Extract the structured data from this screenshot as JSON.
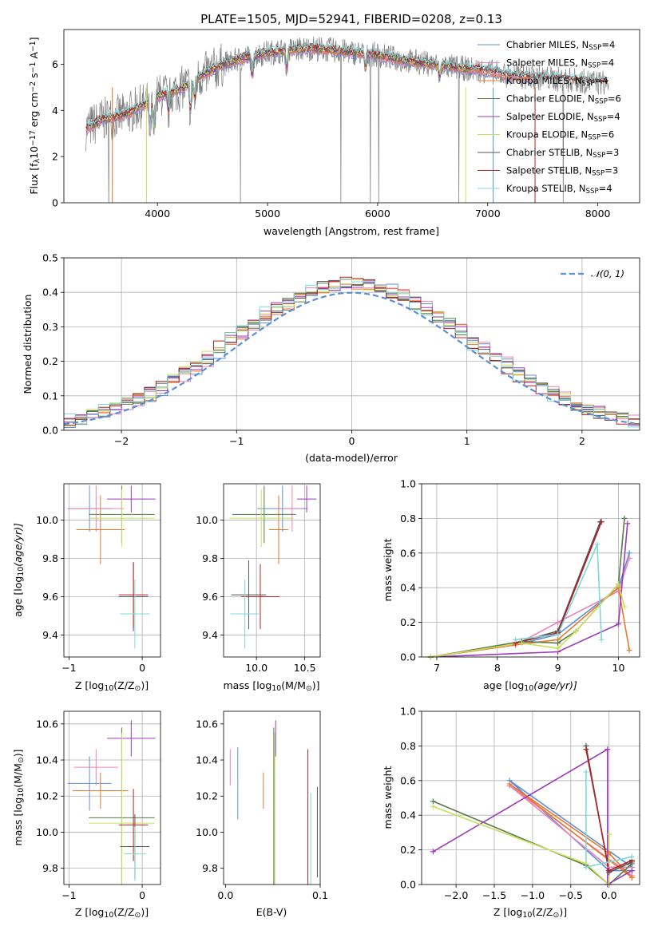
{
  "palette": {
    "c_miles": "#5b8fd6",
    "s_miles": "#ee82b8",
    "k_miles": "#e8782e",
    "c_elodie": "#5a7a4a",
    "s_elodie": "#9b3cb8",
    "k_elodie": "#c8e05a",
    "c_stelib": "#555555",
    "s_stelib": "#b22222",
    "k_stelib": "#7fd8d8",
    "gauss": "#5b8fd6",
    "data": "#808080"
  },
  "chart_data": [
    {
      "id": "spectrum",
      "type": "line",
      "title": "PLATE=1505, MJD=52941, FIBERID=0208, z=0.13",
      "xlabel": "wavelength [Angstrom, rest frame]",
      "ylabel": "Flux [f$_\\lambda$10$^{-17}$ erg cm$^{-2}$ s$^{-1}$ A$^{-1}$]",
      "ylabel_parts": [
        "Flux [f",
        "λ",
        "10",
        "−17",
        " erg cm",
        "−2",
        " s",
        "−1",
        " A",
        "−1",
        "]"
      ],
      "xlim": [
        3150,
        8380
      ],
      "ylim": [
        0,
        7.5
      ],
      "xticks": [
        4000,
        5000,
        6000,
        7000,
        8000
      ],
      "yticks": [
        0,
        2,
        4,
        6
      ],
      "grid": false,
      "legend_position": "right",
      "series": [
        {
          "key": "c_miles",
          "label": "Chabrier MILES, N",
          "sub": "SSP",
          "tail": "=4"
        },
        {
          "key": "s_miles",
          "label": "Salpeter MILES, N",
          "sub": "SSP",
          "tail": "=4"
        },
        {
          "key": "k_miles",
          "label": "Kroupa MILES, N",
          "sub": "SSP",
          "tail": "=4"
        },
        {
          "key": "c_elodie",
          "label": "Chabrier ELODIE, N",
          "sub": "SSP",
          "tail": "=6"
        },
        {
          "key": "s_elodie",
          "label": "Salpeter ELODIE, N",
          "sub": "SSP",
          "tail": "=4"
        },
        {
          "key": "k_elodie",
          "label": "Kroupa ELODIE, N",
          "sub": "SSP",
          "tail": "=6"
        },
        {
          "key": "c_stelib",
          "label": "Chabrier STELIB, N",
          "sub": "SSP",
          "tail": "=3"
        },
        {
          "key": "s_stelib",
          "label": "Salpeter STELIB, N",
          "sub": "SSP",
          "tail": "=3"
        },
        {
          "key": "k_stelib",
          "label": "Kroupa STELIB, N",
          "sub": "SSP",
          "tail": "=4"
        }
      ],
      "continuum": [
        [
          3350,
          3.2
        ],
        [
          3500,
          3.6
        ],
        [
          3700,
          3.8
        ],
        [
          3900,
          4.3
        ],
        [
          4000,
          4.6
        ],
        [
          4200,
          4.9
        ],
        [
          4400,
          5.5
        ],
        [
          4600,
          6.0
        ],
        [
          4800,
          6.3
        ],
        [
          5000,
          6.5
        ],
        [
          5200,
          6.6
        ],
        [
          5400,
          6.7
        ],
        [
          5600,
          6.6
        ],
        [
          5800,
          6.5
        ],
        [
          6000,
          6.4
        ],
        [
          6200,
          6.2
        ],
        [
          6500,
          6.0
        ],
        [
          6800,
          5.8
        ],
        [
          7000,
          5.7
        ],
        [
          7200,
          5.5
        ],
        [
          7500,
          5.4
        ],
        [
          7800,
          5.3
        ],
        [
          8000,
          5.2
        ],
        [
          8100,
          5.2
        ]
      ]
    },
    {
      "id": "residuals",
      "type": "histogram",
      "xlabel": "(data-model)/error",
      "ylabel": "Normed distribution",
      "xlim": [
        -2.5,
        2.5
      ],
      "ylim": [
        0,
        0.5
      ],
      "xticks": [
        -2,
        -1,
        0,
        1,
        2
      ],
      "xtick_labels": [
        "−2",
        "−1",
        "0",
        "1",
        "2"
      ],
      "yticks": [
        0,
        0.1,
        0.2,
        0.3,
        0.4,
        0.5
      ],
      "ytick_labels": [
        "0.0",
        "0.1",
        "0.2",
        "0.3",
        "0.4",
        "0.5"
      ],
      "grid": true,
      "legend_position": "top-right",
      "gauss_label": "𝒩(0, 1)",
      "bin_width": 0.1
    },
    {
      "id": "age-vs-Z",
      "type": "errorbar",
      "xlabel": "Z [log$_{10}$(Z/Z$_\\odot$)]",
      "xlabel_parts": [
        "Z [log",
        "10",
        "(Z/Z",
        "⊙",
        ")]"
      ],
      "ylabel": "age  [log$_{10}$(age/yr)]",
      "ylabel_parts": [
        "age  [log",
        "10",
        "(age/yr)]"
      ],
      "xlim": [
        -1.07,
        0.25
      ],
      "ylim": [
        9.285,
        10.19
      ],
      "xticks": [
        -1,
        0
      ],
      "xtick_labels": [
        "−1",
        "0"
      ],
      "yticks": [
        9.4,
        9.6,
        9.8,
        10.0
      ],
      "ytick_labels": [
        "9.4",
        "9.6",
        "9.8",
        "10.0"
      ],
      "grid": true,
      "points": [
        {
          "key": "c_miles",
          "x": -0.72,
          "xerr": 0.3,
          "y": 10.06,
          "yerr": 0.12
        },
        {
          "key": "s_miles",
          "x": -0.63,
          "xerr": 0.38,
          "y": 10.06,
          "yerr": 0.12
        },
        {
          "key": "k_miles",
          "x": -0.57,
          "xerr": 0.33,
          "y": 9.95,
          "yerr": 0.18
        },
        {
          "key": "c_elodie",
          "x": -0.28,
          "xerr": 0.45,
          "y": 10.03,
          "yerr": 0.15
        },
        {
          "key": "s_elodie",
          "x": -0.15,
          "xerr": 0.33,
          "y": 10.11,
          "yerr": 0.07
        },
        {
          "key": "k_elodie",
          "x": -0.28,
          "xerr": 0.45,
          "y": 10.01,
          "yerr": 0.15
        },
        {
          "key": "c_stelib",
          "x": -0.12,
          "xerr": 0.2,
          "y": 9.6,
          "yerr": 0.18
        },
        {
          "key": "s_stelib",
          "x": -0.12,
          "xerr": 0.2,
          "y": 9.61,
          "yerr": 0.17
        },
        {
          "key": "k_stelib",
          "x": -0.1,
          "xerr": 0.2,
          "y": 9.51,
          "yerr": 0.18
        }
      ]
    },
    {
      "id": "age-vs-mass",
      "type": "errorbar",
      "xlabel": "mass [log$_{10}$(M/M$_\\odot$)]",
      "xlabel_parts": [
        "mass [log",
        "10",
        "(M/M",
        "⊙",
        ")]"
      ],
      "ylabel": "",
      "xlim": [
        9.66,
        10.66
      ],
      "ylim": [
        9.285,
        10.19
      ],
      "xticks": [
        10.0,
        10.5
      ],
      "xtick_labels": [
        "10.0",
        "10.5"
      ],
      "yticks": [
        9.4,
        9.6,
        9.8,
        10.0
      ],
      "ytick_labels": [
        "9.4",
        "9.6",
        "9.8",
        "10.0"
      ],
      "grid": true,
      "points": [
        {
          "key": "c_miles",
          "x": 10.27,
          "xerr": 0.26,
          "y": 10.06,
          "yerr": 0.12
        },
        {
          "key": "s_miles",
          "x": 10.37,
          "xerr": 0.1,
          "y": 10.06,
          "yerr": 0.12
        },
        {
          "key": "k_miles",
          "x": 10.23,
          "xerr": 0.1,
          "y": 9.95,
          "yerr": 0.18
        },
        {
          "key": "c_elodie",
          "x": 10.08,
          "xerr": 0.33,
          "y": 10.03,
          "yerr": 0.15
        },
        {
          "key": "s_elodie",
          "x": 10.52,
          "xerr": 0.1,
          "y": 10.11,
          "yerr": 0.07
        },
        {
          "key": "k_elodie",
          "x": 10.05,
          "xerr": 0.33,
          "y": 10.01,
          "yerr": 0.15
        },
        {
          "key": "c_stelib",
          "x": 9.92,
          "xerr": 0.18,
          "y": 9.61,
          "yerr": 0.18
        },
        {
          "key": "s_stelib",
          "x": 10.04,
          "xerr": 0.2,
          "y": 9.6,
          "yerr": 0.17
        },
        {
          "key": "k_stelib",
          "x": 9.88,
          "xerr": 0.15,
          "y": 9.51,
          "yerr": 0.18
        }
      ]
    },
    {
      "id": "mass-weight-vs-age",
      "type": "line",
      "xlabel": "age  [log$_{10}$(age/yr)]",
      "xlabel_parts": [
        "age  [log",
        "10",
        "(age/yr)]"
      ],
      "ylabel": "mass weight",
      "xlim": [
        6.75,
        10.35
      ],
      "ylim": [
        0,
        1
      ],
      "xticks": [
        7,
        8,
        9,
        10
      ],
      "xtick_labels": [
        "7",
        "8",
        "9",
        "10"
      ],
      "yticks": [
        0,
        0.2,
        0.4,
        0.6,
        0.8,
        1.0
      ],
      "ytick_labels": [
        "0.0",
        "0.2",
        "0.4",
        "0.6",
        "0.8",
        "1.0"
      ],
      "grid": true,
      "series": [
        {
          "key": "c_miles",
          "x": [
            6.9,
            8.3,
            9.0,
            10.0,
            10.18
          ],
          "y": [
            0.0,
            0.07,
            0.13,
            0.4,
            0.6
          ]
        },
        {
          "key": "s_miles",
          "x": [
            6.9,
            8.3,
            9.0,
            10.0,
            10.18
          ],
          "y": [
            0.0,
            0.07,
            0.2,
            0.38,
            0.57
          ]
        },
        {
          "key": "k_miles",
          "x": [
            6.9,
            8.3,
            9.0,
            10.0,
            10.18
          ],
          "y": [
            0.0,
            0.07,
            0.1,
            0.4,
            0.04
          ]
        },
        {
          "key": "c_elodie",
          "x": [
            6.9,
            8.4,
            9.0,
            9.3,
            10.0,
            10.1
          ],
          "y": [
            0.0,
            0.09,
            0.08,
            0.15,
            0.42,
            0.8
          ]
        },
        {
          "key": "s_elodie",
          "x": [
            6.9,
            9.0,
            10.0,
            10.15
          ],
          "y": [
            0.0,
            0.03,
            0.19,
            0.77
          ]
        },
        {
          "key": "k_elodie",
          "x": [
            6.9,
            8.4,
            9.0,
            9.3,
            10.0,
            10.1
          ],
          "y": [
            0.0,
            0.08,
            0.05,
            0.15,
            0.42,
            0.29
          ]
        },
        {
          "key": "c_stelib",
          "x": [
            8.3,
            9.0,
            9.7
          ],
          "y": [
            0.08,
            0.15,
            0.78
          ]
        },
        {
          "key": "s_stelib",
          "x": [
            8.3,
            9.0,
            9.72
          ],
          "y": [
            0.08,
            0.14,
            0.78
          ]
        },
        {
          "key": "k_stelib",
          "x": [
            8.3,
            9.0,
            9.65,
            9.72
          ],
          "y": [
            0.1,
            0.13,
            0.65,
            0.1
          ]
        }
      ]
    },
    {
      "id": "mass-vs-Z",
      "type": "errorbar",
      "xlabel": "Z [log$_{10}$(Z/Z$_\\odot$)]",
      "xlabel_parts": [
        "Z [log",
        "10",
        "(Z/Z",
        "⊙",
        ")]"
      ],
      "ylabel": "mass [log$_{10}$(M/M$_\\odot$)]",
      "ylabel_parts": [
        "mass [log",
        "10",
        "(M/M",
        "⊙",
        ")]"
      ],
      "xlim": [
        -1.07,
        0.25
      ],
      "ylim": [
        9.71,
        10.67
      ],
      "xticks": [
        -1,
        0
      ],
      "xtick_labels": [
        "−1",
        "0"
      ],
      "yticks": [
        9.8,
        10.0,
        10.2,
        10.4,
        10.6
      ],
      "ytick_labels": [
        "9.8",
        "10.0",
        "10.2",
        "10.4",
        "10.6"
      ],
      "grid": true,
      "points": [
        {
          "key": "c_miles",
          "x": -0.72,
          "xerr": 0.3,
          "y": 10.27,
          "yerr": 0.15
        },
        {
          "key": "s_miles",
          "x": -0.63,
          "xerr": 0.3,
          "y": 10.36,
          "yerr": 0.1
        },
        {
          "key": "k_miles",
          "x": -0.57,
          "xerr": 0.38,
          "y": 10.23,
          "yerr": 0.1
        },
        {
          "key": "c_elodie",
          "x": -0.28,
          "xerr": 0.45,
          "y": 10.08,
          "yerr": 0.5
        },
        {
          "key": "s_elodie",
          "x": -0.15,
          "xerr": 0.33,
          "y": 10.52,
          "yerr": 0.1
        },
        {
          "key": "k_elodie",
          "x": -0.28,
          "xerr": 0.45,
          "y": 10.05,
          "yerr": 0.5
        },
        {
          "key": "c_stelib",
          "x": -0.1,
          "xerr": 0.2,
          "y": 9.92,
          "yerr": 0.18
        },
        {
          "key": "s_stelib",
          "x": -0.12,
          "xerr": 0.2,
          "y": 10.04,
          "yerr": 0.2
        },
        {
          "key": "k_stelib",
          "x": -0.1,
          "xerr": 0.15,
          "y": 9.88,
          "yerr": 0.15
        }
      ]
    },
    {
      "id": "mass-vs-ebv",
      "type": "errorbar",
      "xlabel": "E(B-V)",
      "ylabel": "",
      "xlim": [
        -0.002,
        0.1
      ],
      "ylim": [
        9.71,
        10.67
      ],
      "xticks": [
        0.0,
        0.1
      ],
      "xtick_labels": [
        "0.0",
        "0.1"
      ],
      "yticks": [
        9.8,
        10.0,
        10.2,
        10.4,
        10.6
      ],
      "ytick_labels": [
        "9.8",
        "10.0",
        "10.2",
        "10.4",
        "10.6"
      ],
      "grid": false,
      "points": [
        {
          "key": "c_miles",
          "x": 0.013,
          "xerr": 0,
          "y": 10.27,
          "yerr": 0.2
        },
        {
          "key": "s_miles",
          "x": 0.005,
          "xerr": 0,
          "y": 10.36,
          "yerr": 0.1
        },
        {
          "key": "k_miles",
          "x": 0.04,
          "xerr": 0,
          "y": 10.23,
          "yerr": 0.1
        },
        {
          "key": "c_elodie",
          "x": 0.051,
          "xerr": 0,
          "y": 10.08,
          "yerr": 0.5
        },
        {
          "key": "s_elodie",
          "x": 0.053,
          "xerr": 0,
          "y": 10.52,
          "yerr": 0.1
        },
        {
          "key": "k_elodie",
          "x": 0.052,
          "xerr": 0,
          "y": 10.05,
          "yerr": 0.5
        },
        {
          "key": "c_stelib",
          "x": 0.097,
          "xerr": 0,
          "y": 10.0,
          "yerr": 0.25
        },
        {
          "key": "s_stelib",
          "x": 0.087,
          "xerr": 0,
          "y": 10.04,
          "yerr": 0.42
        },
        {
          "key": "k_stelib",
          "x": 0.09,
          "xerr": 0,
          "y": 9.88,
          "yerr": 0.34
        }
      ]
    },
    {
      "id": "mass-weight-vs-Z",
      "type": "line",
      "xlabel": "Z [log$_{10}$(Z/Z$_\\odot$)]",
      "xlabel_parts": [
        "Z [log",
        "10",
        "(Z/Z",
        "⊙",
        ")]"
      ],
      "ylabel": "mass weight",
      "xlim": [
        -2.45,
        0.4
      ],
      "ylim": [
        0,
        1
      ],
      "xticks": [
        -2.0,
        -1.5,
        -1.0,
        -0.5,
        0.0
      ],
      "xtick_labels": [
        "−2.0",
        "−1.5",
        "−1.0",
        "−0.5",
        "0.0"
      ],
      "yticks": [
        0,
        0.2,
        0.4,
        0.6,
        0.8,
        1.0
      ],
      "ytick_labels": [
        "0.0",
        "0.2",
        "0.4",
        "0.6",
        "0.8",
        "1.0"
      ],
      "grid": true,
      "series": [
        {
          "key": "c_miles",
          "x": [
            0.3,
            -1.3,
            0.0,
            0.3
          ],
          "y": [
            0.1,
            0.6,
            0.08,
            0.08
          ]
        },
        {
          "key": "s_miles",
          "x": [
            0.3,
            -1.3,
            0.0,
            0.3
          ],
          "y": [
            0.05,
            0.57,
            0.1,
            0.1
          ]
        },
        {
          "key": "k_miles",
          "x": [
            0.3,
            -1.3,
            0.0,
            0.3
          ],
          "y": [
            0.04,
            0.58,
            0.18,
            0.04
          ]
        },
        {
          "key": "c_elodie",
          "x": [
            -2.3,
            -0.3,
            0.0,
            0.3
          ],
          "y": [
            0.48,
            0.11,
            0.0,
            0.12
          ]
        },
        {
          "key": "s_elodie",
          "x": [
            -2.3,
            -0.02,
            -0.02,
            0.3
          ],
          "y": [
            0.19,
            0.78,
            0.0,
            0.08
          ]
        },
        {
          "key": "k_elodie",
          "x": [
            -2.3,
            -0.3,
            0.0,
            0.0
          ],
          "y": [
            0.45,
            0.12,
            0.0,
            0.29
          ]
        },
        {
          "key": "c_stelib",
          "x": [
            -0.3,
            0.0,
            0.3
          ],
          "y": [
            0.8,
            0.07,
            0.13
          ]
        },
        {
          "key": "s_stelib",
          "x": [
            -0.3,
            0.0,
            0.3
          ],
          "y": [
            0.78,
            0.08,
            0.14
          ]
        },
        {
          "key": "k_stelib",
          "x": [
            -0.3,
            -0.3,
            0.3
          ],
          "y": [
            0.65,
            0.1,
            0.16
          ]
        }
      ]
    }
  ]
}
